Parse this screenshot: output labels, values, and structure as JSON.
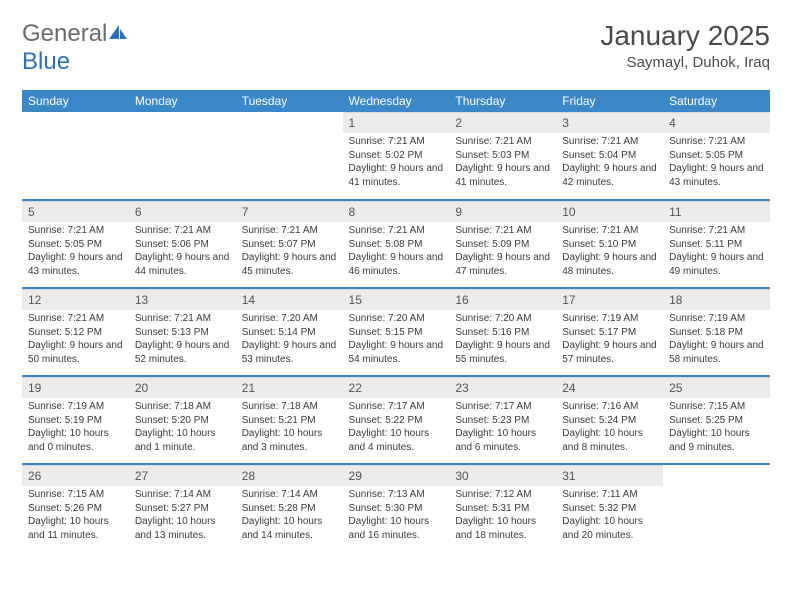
{
  "brand": {
    "part1": "General",
    "part2": "Blue"
  },
  "title": "January 2025",
  "location": "Saymayl, Duhok, Iraq",
  "colors": {
    "header_bg": "#3b87c8",
    "header_text": "#ffffff",
    "daynum_bg": "#ebebeb",
    "row_border": "#3b87c8",
    "logo_blue": "#2d71b8",
    "text": "#3a3a3a"
  },
  "weekdays": [
    "Sunday",
    "Monday",
    "Tuesday",
    "Wednesday",
    "Thursday",
    "Friday",
    "Saturday"
  ],
  "weeks": [
    [
      null,
      null,
      null,
      {
        "n": "1",
        "sr": "Sunrise: 7:21 AM",
        "ss": "Sunset: 5:02 PM",
        "dl": "Daylight: 9 hours and 41 minutes."
      },
      {
        "n": "2",
        "sr": "Sunrise: 7:21 AM",
        "ss": "Sunset: 5:03 PM",
        "dl": "Daylight: 9 hours and 41 minutes."
      },
      {
        "n": "3",
        "sr": "Sunrise: 7:21 AM",
        "ss": "Sunset: 5:04 PM",
        "dl": "Daylight: 9 hours and 42 minutes."
      },
      {
        "n": "4",
        "sr": "Sunrise: 7:21 AM",
        "ss": "Sunset: 5:05 PM",
        "dl": "Daylight: 9 hours and 43 minutes."
      }
    ],
    [
      {
        "n": "5",
        "sr": "Sunrise: 7:21 AM",
        "ss": "Sunset: 5:05 PM",
        "dl": "Daylight: 9 hours and 43 minutes."
      },
      {
        "n": "6",
        "sr": "Sunrise: 7:21 AM",
        "ss": "Sunset: 5:06 PM",
        "dl": "Daylight: 9 hours and 44 minutes."
      },
      {
        "n": "7",
        "sr": "Sunrise: 7:21 AM",
        "ss": "Sunset: 5:07 PM",
        "dl": "Daylight: 9 hours and 45 minutes."
      },
      {
        "n": "8",
        "sr": "Sunrise: 7:21 AM",
        "ss": "Sunset: 5:08 PM",
        "dl": "Daylight: 9 hours and 46 minutes."
      },
      {
        "n": "9",
        "sr": "Sunrise: 7:21 AM",
        "ss": "Sunset: 5:09 PM",
        "dl": "Daylight: 9 hours and 47 minutes."
      },
      {
        "n": "10",
        "sr": "Sunrise: 7:21 AM",
        "ss": "Sunset: 5:10 PM",
        "dl": "Daylight: 9 hours and 48 minutes."
      },
      {
        "n": "11",
        "sr": "Sunrise: 7:21 AM",
        "ss": "Sunset: 5:11 PM",
        "dl": "Daylight: 9 hours and 49 minutes."
      }
    ],
    [
      {
        "n": "12",
        "sr": "Sunrise: 7:21 AM",
        "ss": "Sunset: 5:12 PM",
        "dl": "Daylight: 9 hours and 50 minutes."
      },
      {
        "n": "13",
        "sr": "Sunrise: 7:21 AM",
        "ss": "Sunset: 5:13 PM",
        "dl": "Daylight: 9 hours and 52 minutes."
      },
      {
        "n": "14",
        "sr": "Sunrise: 7:20 AM",
        "ss": "Sunset: 5:14 PM",
        "dl": "Daylight: 9 hours and 53 minutes."
      },
      {
        "n": "15",
        "sr": "Sunrise: 7:20 AM",
        "ss": "Sunset: 5:15 PM",
        "dl": "Daylight: 9 hours and 54 minutes."
      },
      {
        "n": "16",
        "sr": "Sunrise: 7:20 AM",
        "ss": "Sunset: 5:16 PM",
        "dl": "Daylight: 9 hours and 55 minutes."
      },
      {
        "n": "17",
        "sr": "Sunrise: 7:19 AM",
        "ss": "Sunset: 5:17 PM",
        "dl": "Daylight: 9 hours and 57 minutes."
      },
      {
        "n": "18",
        "sr": "Sunrise: 7:19 AM",
        "ss": "Sunset: 5:18 PM",
        "dl": "Daylight: 9 hours and 58 minutes."
      }
    ],
    [
      {
        "n": "19",
        "sr": "Sunrise: 7:19 AM",
        "ss": "Sunset: 5:19 PM",
        "dl": "Daylight: 10 hours and 0 minutes."
      },
      {
        "n": "20",
        "sr": "Sunrise: 7:18 AM",
        "ss": "Sunset: 5:20 PM",
        "dl": "Daylight: 10 hours and 1 minute."
      },
      {
        "n": "21",
        "sr": "Sunrise: 7:18 AM",
        "ss": "Sunset: 5:21 PM",
        "dl": "Daylight: 10 hours and 3 minutes."
      },
      {
        "n": "22",
        "sr": "Sunrise: 7:17 AM",
        "ss": "Sunset: 5:22 PM",
        "dl": "Daylight: 10 hours and 4 minutes."
      },
      {
        "n": "23",
        "sr": "Sunrise: 7:17 AM",
        "ss": "Sunset: 5:23 PM",
        "dl": "Daylight: 10 hours and 6 minutes."
      },
      {
        "n": "24",
        "sr": "Sunrise: 7:16 AM",
        "ss": "Sunset: 5:24 PM",
        "dl": "Daylight: 10 hours and 8 minutes."
      },
      {
        "n": "25",
        "sr": "Sunrise: 7:15 AM",
        "ss": "Sunset: 5:25 PM",
        "dl": "Daylight: 10 hours and 9 minutes."
      }
    ],
    [
      {
        "n": "26",
        "sr": "Sunrise: 7:15 AM",
        "ss": "Sunset: 5:26 PM",
        "dl": "Daylight: 10 hours and 11 minutes."
      },
      {
        "n": "27",
        "sr": "Sunrise: 7:14 AM",
        "ss": "Sunset: 5:27 PM",
        "dl": "Daylight: 10 hours and 13 minutes."
      },
      {
        "n": "28",
        "sr": "Sunrise: 7:14 AM",
        "ss": "Sunset: 5:28 PM",
        "dl": "Daylight: 10 hours and 14 minutes."
      },
      {
        "n": "29",
        "sr": "Sunrise: 7:13 AM",
        "ss": "Sunset: 5:30 PM",
        "dl": "Daylight: 10 hours and 16 minutes."
      },
      {
        "n": "30",
        "sr": "Sunrise: 7:12 AM",
        "ss": "Sunset: 5:31 PM",
        "dl": "Daylight: 10 hours and 18 minutes."
      },
      {
        "n": "31",
        "sr": "Sunrise: 7:11 AM",
        "ss": "Sunset: 5:32 PM",
        "dl": "Daylight: 10 hours and 20 minutes."
      },
      null
    ]
  ]
}
